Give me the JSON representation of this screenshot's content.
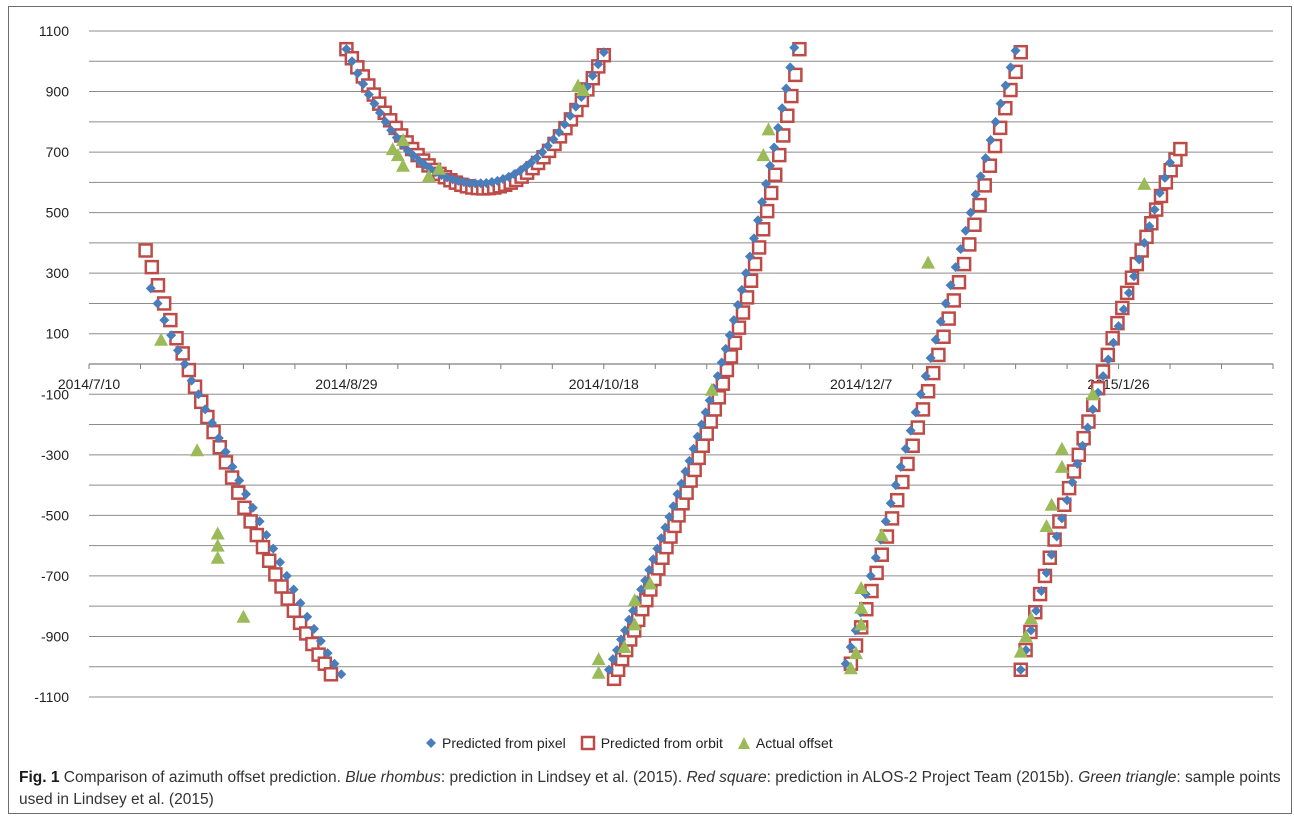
{
  "chart_data": {
    "type": "scatter",
    "title": "",
    "xlabel": "",
    "ylabel": "",
    "x_ticks": [
      "2014/7/10",
      "2014/8/29",
      "2014/10/18",
      "2014/12/7",
      "2015/1/26"
    ],
    "xlim": [
      "2014-07-10",
      "2015-02-25"
    ],
    "y_ticks": [
      1100,
      900,
      700,
      500,
      300,
      100,
      -100,
      -300,
      -500,
      -700,
      -900,
      -1100
    ],
    "ylim": [
      -1100,
      1100
    ],
    "grid": "horizontal",
    "legend_position": "bottom",
    "series": [
      {
        "name": "Predicted from pixel",
        "marker": "diamond",
        "color": "#4A7EBB",
        "segments": [
          {
            "x_start": "2014-07-22",
            "x_end": "2014-08-28",
            "y": [
              250,
              200,
              145,
              95,
              45,
              0,
              -55,
              -100,
              -150,
              -195,
              -245,
              -290,
              -340,
              -385,
              -430,
              -475,
              -520,
              -565,
              -610,
              -655,
              -700,
              -745,
              -790,
              -835,
              -875,
              -915,
              -955,
              -990,
              -1025
            ]
          },
          {
            "x_start": "2014-08-29",
            "x_end": "2014-10-18",
            "y": [
              1040,
              1000,
              960,
              925,
              890,
              860,
              830,
              800,
              772,
              748,
              725,
              705,
              688,
              672,
              658,
              645,
              634,
              624,
              616,
              610,
              605,
              601,
              598,
              597,
              597,
              598,
              601,
              605,
              611,
              618,
              627,
              638,
              651,
              665,
              681,
              700,
              720,
              742,
              766,
              792,
              820,
              850,
              882,
              916,
              952,
              990,
              1030
            ]
          },
          {
            "x_start": "2014-10-19",
            "x_end": "2014-11-24",
            "y": [
              -1010,
              -975,
              -945,
              -910,
              -880,
              -845,
              -815,
              -780,
              -745,
              -715,
              -680,
              -645,
              -610,
              -575,
              -540,
              -505,
              -470,
              -430,
              -395,
              -355,
              -320,
              -280,
              -240,
              -200,
              -160,
              -120,
              -80,
              -40,
              5,
              50,
              95,
              145,
              195,
              245,
              300,
              355,
              415,
              475,
              535,
              595,
              655,
              715,
              780,
              845,
              910,
              980,
              1045
            ]
          },
          {
            "x_start": "2014-12-04",
            "x_end": "2015-01-06",
            "y": [
              -990,
              -935,
              -880,
              -820,
              -760,
              -700,
              -640,
              -580,
              -520,
              -460,
              -400,
              -340,
              -280,
              -220,
              -160,
              -100,
              -40,
              20,
              80,
              140,
              200,
              260,
              320,
              380,
              440,
              500,
              560,
              620,
              680,
              740,
              800,
              860,
              920,
              980,
              1035
            ]
          },
          {
            "x_start": "2015-01-07",
            "x_end": "2015-02-05",
            "y": [
              -1010,
              -945,
              -880,
              -815,
              -750,
              -690,
              -630,
              -570,
              -510,
              -450,
              -390,
              -330,
              -270,
              -210,
              -150,
              -95,
              -40,
              15,
              70,
              125,
              180,
              235,
              290,
              345,
              400,
              455,
              510,
              565,
              615,
              665
            ]
          }
        ]
      },
      {
        "name": "Predicted from orbit",
        "marker": "hollow-square",
        "color": "#BE4B48",
        "segments": [
          {
            "x_start": "2014-07-21",
            "x_end": "2014-08-26",
            "y": [
              375,
              320,
              260,
              200,
              145,
              85,
              35,
              -20,
              -75,
              -125,
              -175,
              -225,
              -275,
              -325,
              -375,
              -425,
              -475,
              -520,
              -565,
              -605,
              -650,
              -695,
              -735,
              -775,
              -815,
              -855,
              -890,
              -925,
              -960,
              -990,
              -1025
            ]
          },
          {
            "x_start": "2014-08-29",
            "x_end": "2014-10-18",
            "y": [
              1040,
              1010,
              980,
              950,
              920,
              890,
              860,
              830,
              805,
              780,
              755,
              732,
              710,
              690,
              672,
              656,
              641,
              628,
              617,
              607,
              599,
              592,
              587,
              583,
              581,
              580,
              581,
              583,
              587,
              592,
              599,
              608,
              619,
              632,
              647,
              664,
              683,
              704,
              727,
              752,
              779,
              808,
              839,
              872,
              907,
              944,
              983,
              1020
            ]
          },
          {
            "x_start": "2014-10-20",
            "x_end": "2014-11-25",
            "y": [
              -1040,
              -1010,
              -975,
              -945,
              -910,
              -880,
              -845,
              -810,
              -780,
              -745,
              -710,
              -675,
              -640,
              -605,
              -570,
              -535,
              -500,
              -460,
              -425,
              -385,
              -350,
              -310,
              -270,
              -230,
              -190,
              -150,
              -110,
              -65,
              -20,
              25,
              70,
              120,
              170,
              220,
              275,
              330,
              385,
              445,
              505,
              565,
              625,
              690,
              755,
              820,
              885,
              955,
              1040
            ]
          },
          {
            "x_start": "2014-12-05",
            "x_end": "2015-01-07",
            "y": [
              -990,
              -930,
              -870,
              -810,
              -750,
              -690,
              -630,
              -570,
              -510,
              -450,
              -390,
              -330,
              -270,
              -210,
              -150,
              -90,
              -30,
              30,
              90,
              150,
              210,
              270,
              330,
              395,
              460,
              525,
              590,
              655,
              720,
              780,
              845,
              905,
              965,
              1030
            ]
          },
          {
            "x_start": "2015-01-07",
            "x_end": "2015-02-07",
            "y": [
              -1010,
              -945,
              -885,
              -820,
              -760,
              -700,
              -640,
              -580,
              -520,
              -465,
              -410,
              -355,
              -300,
              -245,
              -190,
              -135,
              -80,
              -25,
              30,
              85,
              135,
              185,
              235,
              285,
              330,
              375,
              420,
              465,
              510,
              555,
              600,
              640,
              675,
              710
            ]
          }
        ]
      },
      {
        "name": "Actual offset",
        "marker": "triangle",
        "color": "#9BBB59",
        "points": [
          [
            "2014-07-24",
            80
          ],
          [
            "2014-07-31",
            -285
          ],
          [
            "2014-08-04",
            -560
          ],
          [
            "2014-08-04",
            -600
          ],
          [
            "2014-08-04",
            -640
          ],
          [
            "2014-08-09",
            -835
          ],
          [
            "2014-09-07",
            710
          ],
          [
            "2014-09-08",
            690
          ],
          [
            "2014-09-09",
            740
          ],
          [
            "2014-09-09",
            655
          ],
          [
            "2014-09-14",
            620
          ],
          [
            "2014-09-16",
            645
          ],
          [
            "2014-10-13",
            920
          ],
          [
            "2014-10-14",
            905
          ],
          [
            "2014-10-17",
            -975
          ],
          [
            "2014-10-17",
            -1020
          ],
          [
            "2014-10-22",
            -935
          ],
          [
            "2014-10-24",
            -860
          ],
          [
            "2014-10-24",
            -780
          ],
          [
            "2014-10-27",
            -725
          ],
          [
            "2014-11-08",
            -85
          ],
          [
            "2014-11-18",
            690
          ],
          [
            "2014-11-19",
            775
          ],
          [
            "2014-12-05",
            -1005
          ],
          [
            "2014-12-06",
            -955
          ],
          [
            "2014-12-07",
            -860
          ],
          [
            "2014-12-07",
            -805
          ],
          [
            "2014-12-07",
            -740
          ],
          [
            "2014-12-11",
            -565
          ],
          [
            "2014-12-20",
            335
          ],
          [
            "2015-01-07",
            -950
          ],
          [
            "2015-01-08",
            -900
          ],
          [
            "2015-01-09",
            -840
          ],
          [
            "2015-01-12",
            -535
          ],
          [
            "2015-01-13",
            -465
          ],
          [
            "2015-01-15",
            -340
          ],
          [
            "2015-01-15",
            -280
          ],
          [
            "2015-01-21",
            -100
          ],
          [
            "2015-01-31",
            595
          ]
        ]
      }
    ]
  },
  "caption": {
    "label": "Fig. 1",
    "t1": " Comparison of azimuth offset prediction. ",
    "i1": "Blue rhombus",
    "t2": ": prediction in Lindsey et al. (2015). ",
    "i2": "Red square",
    "t3": ": prediction in ALOS-2 Project Team (2015b). ",
    "i3": "Green triangle",
    "t4": ": sample points used in Lindsey et al. (2015)"
  }
}
